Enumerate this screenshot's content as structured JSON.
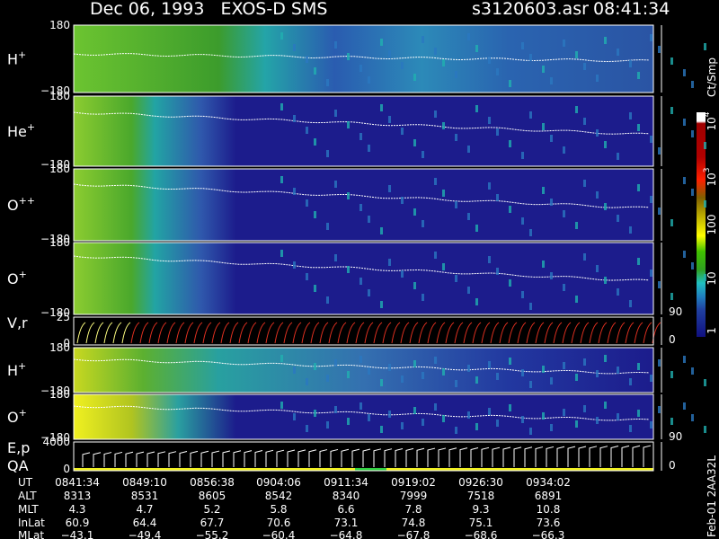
{
  "header": {
    "title": "Dec 06, 1993   EXOS-D SMS",
    "file": "s3120603.asr",
    "time": "08:41:34"
  },
  "panels": [
    {
      "label": {
        "text": "H",
        "sup": "+"
      },
      "ticks": [
        "180",
        "−180"
      ]
    },
    {
      "label": {
        "text": "He",
        "sup": "+"
      },
      "ticks": [
        "180",
        "−180"
      ]
    },
    {
      "label": {
        "text": "O",
        "sup": "++"
      },
      "ticks": [
        "180",
        "−180"
      ]
    },
    {
      "label": {
        "text": "O",
        "sup": "+"
      },
      "ticks": [
        "180",
        "−180"
      ]
    },
    {
      "label": {
        "text": "V,r"
      },
      "ticks": [
        "25",
        "0"
      ],
      "right_ticks": [
        "90",
        "0"
      ]
    },
    {
      "label": {
        "text": "H",
        "sup": "+"
      },
      "ticks": [
        "180",
        "−180"
      ]
    },
    {
      "label": {
        "text": "O",
        "sup": "+"
      },
      "ticks": [
        "180",
        "−180"
      ]
    },
    {
      "label": {
        "text": "E,p",
        "text2": "QA"
      },
      "ticks": [
        "4000",
        "0"
      ],
      "right_ticks": [
        "90",
        "0"
      ]
    }
  ],
  "colorbar": {
    "unit": "Ct/Smp",
    "labels": [
      {
        "text": "10",
        "sup": "4"
      },
      {
        "text": "10",
        "sup": "3"
      },
      {
        "text": "100"
      },
      {
        "text": "10"
      },
      {
        "text": "1"
      }
    ]
  },
  "table": {
    "rows": [
      {
        "label": "UT",
        "cells": [
          "0841:34",
          "0849:10",
          "0856:38",
          "0904:06",
          "0911:34",
          "0919:02",
          "0926:30",
          "0934:02"
        ]
      },
      {
        "label": "ALT",
        "cells": [
          "8313",
          "8531",
          "8605",
          "8542",
          "8340",
          "7999",
          "7518",
          "6891"
        ]
      },
      {
        "label": "MLT",
        "cells": [
          "4.3",
          "4.7",
          "5.2",
          "5.8",
          "6.6",
          "7.8",
          "9.3",
          "10.8"
        ]
      },
      {
        "label": "InLat",
        "cells": [
          "60.9",
          "64.4",
          "67.7",
          "70.6",
          "73.1",
          "74.8",
          "75.1",
          "73.6"
        ]
      },
      {
        "label": "MLat",
        "cells": [
          "−43.1",
          "−49.4",
          "−55.2",
          "−60.4",
          "−64.8",
          "−67.8",
          "−68.6",
          "−66.3"
        ]
      }
    ]
  },
  "footer": "Feb-01 2AA32L"
}
